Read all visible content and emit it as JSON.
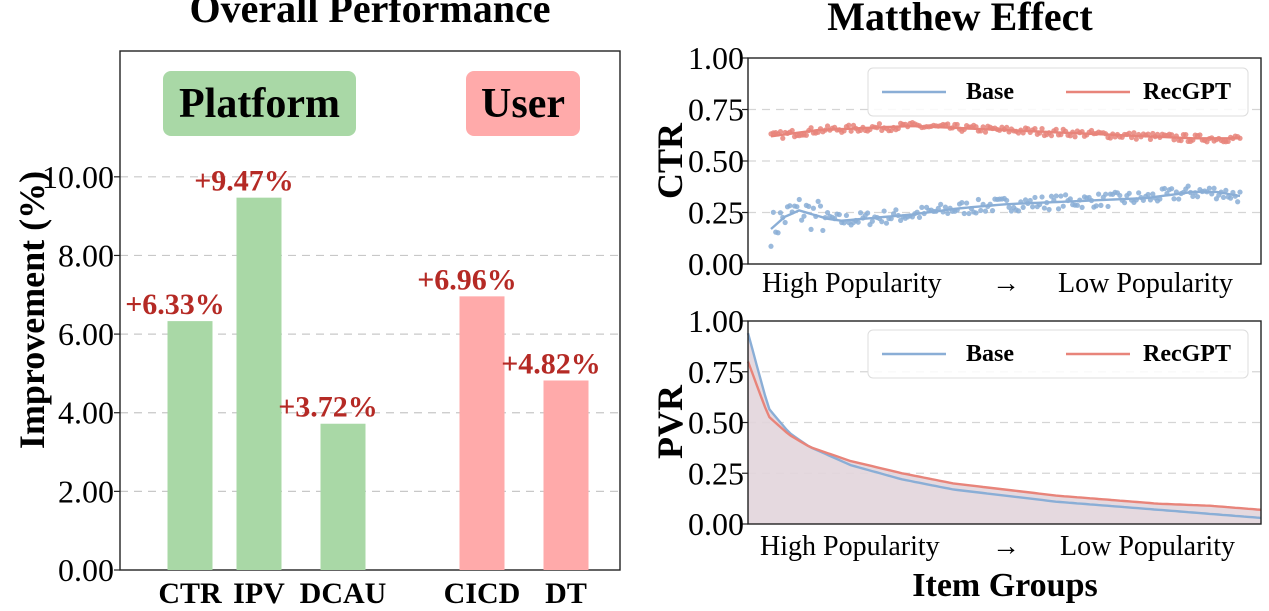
{
  "colors": {
    "platform": "#a9d8a6",
    "user": "#ffaaaa",
    "bar_label": "#b52a25",
    "base": "#8aaed6",
    "recgpt": "#e8847a",
    "fill": "#e2d5db",
    "grid": "#c8c8c8"
  },
  "chart_data": [
    {
      "type": "bar",
      "title": "Overall Performance",
      "ylabel": "Improvement (%)",
      "ylim": [
        0,
        13.2
      ],
      "yticks": [
        "0.00",
        "2.00",
        "4.00",
        "6.00",
        "8.00",
        "10.00"
      ],
      "ytick_values": [
        0,
        2,
        4,
        6,
        8,
        10
      ],
      "grid": true,
      "groups": [
        {
          "label": "Platform",
          "color_key": "platform",
          "categories": [
            "CTR",
            "IPV",
            "DCAU"
          ],
          "values": [
            6.33,
            9.47,
            3.72
          ],
          "value_labels": [
            "+6.33%",
            "+9.47%",
            "+3.72%"
          ]
        },
        {
          "label": "User",
          "color_key": "user",
          "categories": [
            "CICD",
            "DT"
          ],
          "values": [
            6.96,
            4.82
          ],
          "value_labels": [
            "+6.96%",
            "+4.82%"
          ]
        }
      ]
    },
    {
      "type": "scatter",
      "title": "Matthew Effect",
      "ylabel": "CTR",
      "xlabel": "High Popularity → Low Popularity",
      "xlabel_left": "High Popularity",
      "xlabel_arrow": "→",
      "xlabel_right": "Low Popularity",
      "ylim": [
        0,
        1
      ],
      "yticks": [
        "0.00",
        "0.25",
        "0.50",
        "0.75",
        "1.00"
      ],
      "ytick_values": [
        0,
        0.25,
        0.5,
        0.75,
        1
      ],
      "legend": "top-right",
      "n_points": 200,
      "series": [
        {
          "name": "Base",
          "color_key": "base",
          "trend": [
            [
              0.0,
              0.17
            ],
            [
              0.01,
              0.19
            ],
            [
              0.03,
              0.23
            ],
            [
              0.06,
              0.26
            ],
            [
              0.09,
              0.24
            ],
            [
              0.12,
              0.22
            ],
            [
              0.15,
              0.21
            ],
            [
              0.2,
              0.22
            ],
            [
              0.3,
              0.24
            ],
            [
              0.4,
              0.27
            ],
            [
              0.5,
              0.29
            ],
            [
              0.6,
              0.3
            ],
            [
              0.7,
              0.31
            ],
            [
              0.8,
              0.32
            ],
            [
              0.9,
              0.35
            ],
            [
              0.95,
              0.35
            ],
            [
              1.0,
              0.33
            ]
          ],
          "noise": 0.035
        },
        {
          "name": "RecGPT",
          "color_key": "recgpt",
          "trend": [
            [
              0.0,
              0.62
            ],
            [
              0.1,
              0.65
            ],
            [
              0.2,
              0.66
            ],
            [
              0.3,
              0.67
            ],
            [
              0.4,
              0.66
            ],
            [
              0.5,
              0.65
            ],
            [
              0.6,
              0.64
            ],
            [
              0.7,
              0.63
            ],
            [
              0.8,
              0.62
            ],
            [
              0.9,
              0.61
            ],
            [
              1.0,
              0.61
            ]
          ],
          "noise": 0.018
        }
      ]
    },
    {
      "type": "area",
      "ylabel": "PVR",
      "xlabel": "Item Groups",
      "xlabel_left": "High Popularity",
      "xlabel_arrow": "→",
      "xlabel_right": "Low Popularity",
      "ylim": [
        0,
        1
      ],
      "yticks": [
        "0.00",
        "0.25",
        "0.50",
        "0.75",
        "1.00"
      ],
      "ytick_values": [
        0,
        0.25,
        0.5,
        0.75,
        1
      ],
      "legend": "top-right",
      "series": [
        {
          "name": "Base",
          "color_key": "base",
          "points": [
            [
              0.0,
              0.94
            ],
            [
              0.04,
              0.57
            ],
            [
              0.08,
              0.45
            ],
            [
              0.12,
              0.38
            ],
            [
              0.2,
              0.29
            ],
            [
              0.3,
              0.22
            ],
            [
              0.4,
              0.17
            ],
            [
              0.5,
              0.14
            ],
            [
              0.6,
              0.11
            ],
            [
              0.7,
              0.09
            ],
            [
              0.8,
              0.07
            ],
            [
              0.9,
              0.05
            ],
            [
              1.0,
              0.03
            ]
          ]
        },
        {
          "name": "RecGPT",
          "color_key": "recgpt",
          "points": [
            [
              0.0,
              0.8
            ],
            [
              0.04,
              0.53
            ],
            [
              0.08,
              0.44
            ],
            [
              0.12,
              0.38
            ],
            [
              0.2,
              0.31
            ],
            [
              0.3,
              0.25
            ],
            [
              0.4,
              0.2
            ],
            [
              0.5,
              0.17
            ],
            [
              0.6,
              0.14
            ],
            [
              0.7,
              0.12
            ],
            [
              0.8,
              0.1
            ],
            [
              0.9,
              0.09
            ],
            [
              1.0,
              0.07
            ]
          ]
        }
      ]
    }
  ]
}
